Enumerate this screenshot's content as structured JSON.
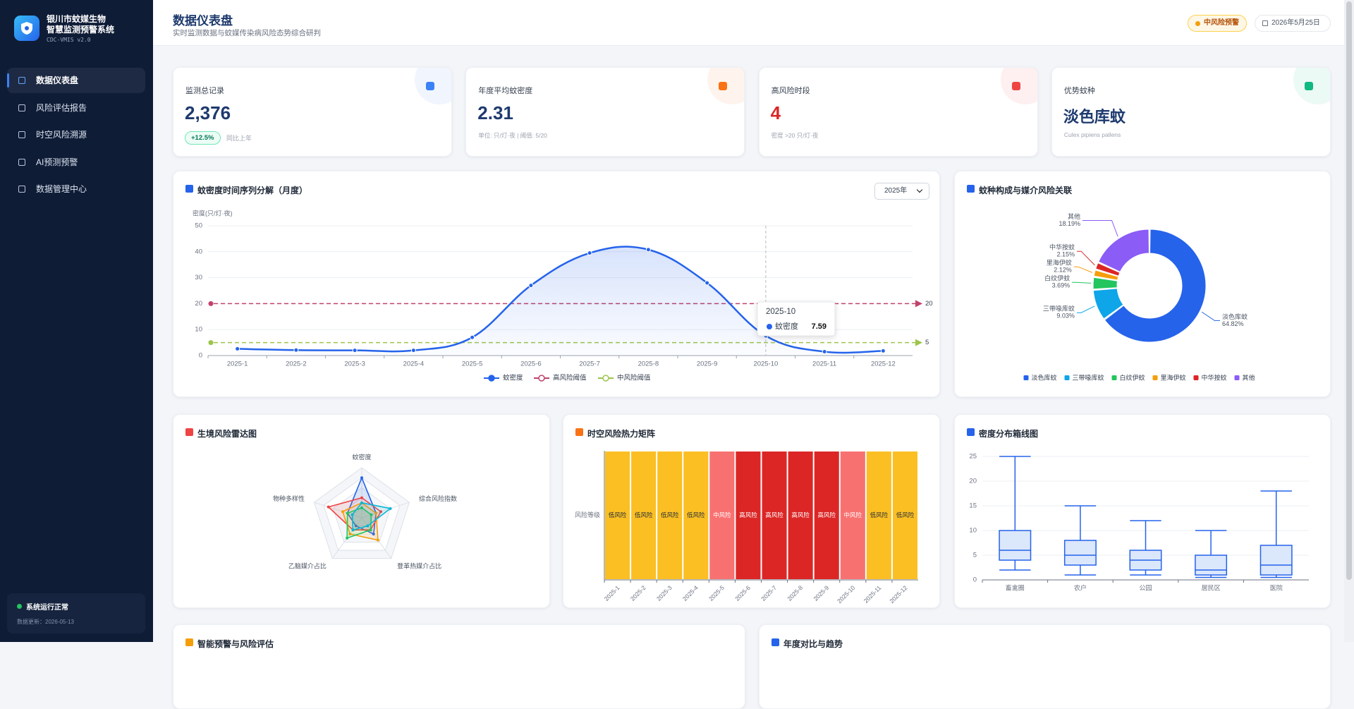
{
  "sidebar": {
    "title_line1": "银川市蚊媒生物",
    "title_line2": "智慧监测预警系统",
    "version": "CDC-VMIS v2.0",
    "nav": [
      "数据仪表盘",
      "风险评估报告",
      "时空风险溯源",
      "AI预测预警",
      "数据管理中心"
    ],
    "active": 0,
    "status": "系统运行正常",
    "updated": "数据更新：2026-05-13"
  },
  "header": {
    "title": "数据仪表盘",
    "subtitle": "实时监测数据与蚊媒传染病风险态势综合研判",
    "alert": "中风险预警",
    "date": "2026年5月25日"
  },
  "kpis": [
    {
      "label": "监测总记录",
      "value": "2,376",
      "badge": "+12.5%",
      "note": "同比上年",
      "color": "#1e3a6e",
      "accent": "#3b82f6"
    },
    {
      "label": "年度平均蚊密度",
      "value": "2.31",
      "note": "单位: 只/灯·夜 | 阈值: 5/20",
      "color": "#1e3a6e",
      "accent": "#f97316"
    },
    {
      "label": "高风险时段",
      "value": "4",
      "note": "密度 >20 只/灯·夜",
      "color": "#dc2626",
      "accent": "#ef4444"
    },
    {
      "label": "优势蚊种",
      "value": "淡色库蚊",
      "note": "Culex pipiens pallens",
      "color": "#1e3a6e",
      "accent": "#10b981"
    }
  ],
  "chart_data": [
    {
      "type": "line",
      "title": "蚊密度时间序列分解（月度）",
      "year_select": "2025年",
      "y_label": "密度(只/灯·夜)",
      "categories": [
        "2025-1",
        "2025-2",
        "2025-3",
        "2025-4",
        "2025-5",
        "2025-6",
        "2025-7",
        "2025-8",
        "2025-9",
        "2025-10",
        "2025-11",
        "2025-12"
      ],
      "series": [
        {
          "name": "蚊密度",
          "color": "#2563eb",
          "values": [
            2.6,
            2.1,
            2.0,
            2.0,
            7.0,
            27.0,
            39.5,
            40.8,
            28.0,
            7.59,
            1.5,
            1.8
          ]
        }
      ],
      "thresholds": [
        {
          "name": "高风险阈值",
          "value": 20,
          "color": "#c2416b"
        },
        {
          "name": "中风险阈值",
          "value": 5,
          "color": "#9cc54a"
        }
      ],
      "ylim": [
        0,
        50
      ],
      "yticks": [
        0,
        10,
        20,
        30,
        40,
        50
      ],
      "grid": true,
      "tooltip_index": 9
    },
    {
      "type": "pie",
      "title": "蚊种构成与媒介风险关联",
      "categories": [
        "淡色库蚊",
        "三带喙库蚊",
        "白纹伊蚊",
        "里海伊蚊",
        "中华按蚊",
        "其他"
      ],
      "values": [
        64.82,
        9.03,
        3.69,
        2.12,
        2.15,
        18.19
      ],
      "value_labels": [
        "64.82%",
        "9.03%",
        "3.69%",
        "2.12%",
        "2.15%",
        "18.19%"
      ],
      "colors": [
        "#2563eb",
        "#0ea5e9",
        "#22c55e",
        "#f59e0b",
        "#dc2626",
        "#8b5cf6"
      ]
    },
    {
      "type": "radar",
      "title": "生境风险雷达图",
      "indicators": [
        "蚊密度",
        "综合风险指数",
        "登革热媒介占比",
        "乙脑媒介占比",
        "物种多样性"
      ],
      "rlim": [
        0,
        100
      ],
      "series": [
        {
          "color": "#2563eb",
          "values": [
            80,
            30,
            40,
            20,
            30
          ]
        },
        {
          "color": "#ef4444",
          "values": [
            40,
            40,
            30,
            30,
            70
          ]
        },
        {
          "color": "#f59e0b",
          "values": [
            30,
            30,
            55,
            40,
            40
          ]
        },
        {
          "color": "#22c55e",
          "values": [
            20,
            20,
            30,
            50,
            30
          ]
        },
        {
          "color": "#06b6d4",
          "values": [
            30,
            60,
            20,
            30,
            20
          ]
        }
      ]
    },
    {
      "type": "heatmap",
      "title": "时空风险热力矩阵",
      "y_categories": [
        "风险等级"
      ],
      "categories": [
        "2025-1",
        "2025-2",
        "2025-3",
        "2025-4",
        "2025-5",
        "2025-6",
        "2025-7",
        "2025-8",
        "2025-9",
        "2025-10",
        "2025-11",
        "2025-12"
      ],
      "levels": [
        {
          "name": "低风险",
          "color": "#fbbf24"
        },
        {
          "name": "中风险",
          "color": "#f87171"
        },
        {
          "name": "高风险",
          "color": "#dc2626"
        }
      ],
      "values": [
        0,
        0,
        0,
        0,
        1,
        2,
        2,
        2,
        2,
        1,
        0,
        0
      ]
    },
    {
      "type": "boxplot",
      "title": "密度分布箱线图",
      "categories": [
        "畜禽圈",
        "农户",
        "公园",
        "居民区",
        "医院"
      ],
      "color": "#2563eb",
      "values": [
        [
          2,
          4,
          6,
          10,
          25
        ],
        [
          1,
          3,
          5,
          8,
          15
        ],
        [
          1,
          2,
          4,
          6,
          12
        ],
        [
          0.5,
          1,
          2,
          5,
          10
        ],
        [
          0.5,
          1,
          3,
          7,
          18
        ]
      ],
      "ylim": [
        0,
        25
      ],
      "yticks": [
        0,
        5,
        10,
        15,
        20,
        25
      ],
      "grid": true
    }
  ],
  "lower_panels": [
    "智能预警与风险评估",
    "年度对比与趋势"
  ]
}
